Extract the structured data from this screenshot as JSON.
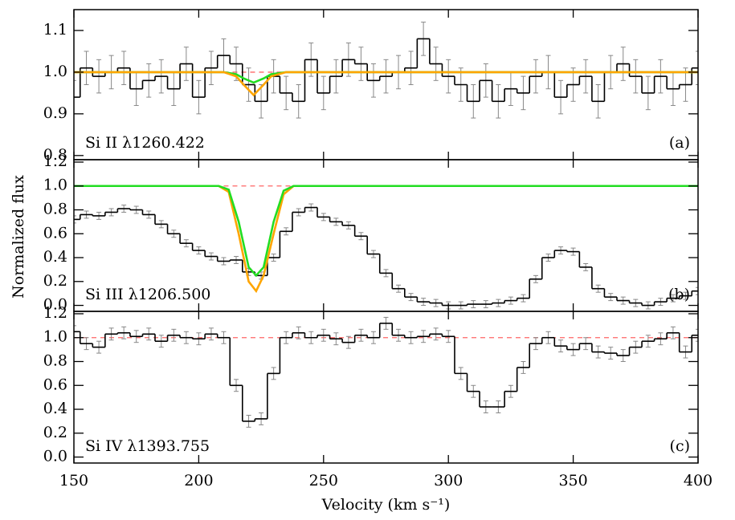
{
  "chart_data": [
    {
      "type": "step",
      "label": "Si II λ1260.422",
      "panel": "(a)",
      "xlim": [
        150,
        400
      ],
      "xticks": [
        150,
        200,
        250,
        300,
        350,
        400
      ],
      "ylim": [
        0.79,
        1.15
      ],
      "yticks": [
        0.8,
        0.9,
        {
          "value": 1.0,
          "label": "1.0"
        },
        1.1
      ],
      "x": [
        150,
        155,
        160,
        165,
        170,
        175,
        180,
        185,
        190,
        195,
        200,
        205,
        210,
        215,
        220,
        225,
        230,
        235,
        240,
        245,
        250,
        255,
        260,
        265,
        270,
        275,
        280,
        285,
        290,
        295,
        300,
        305,
        310,
        315,
        320,
        325,
        330,
        335,
        340,
        345,
        350,
        355,
        360,
        365,
        370,
        375,
        380,
        385,
        390,
        395,
        400
      ],
      "values": [
        0.94,
        1.01,
        0.99,
        1.0,
        1.01,
        0.96,
        0.98,
        0.99,
        0.96,
        1.02,
        0.94,
        1.01,
        1.04,
        1.02,
        0.97,
        0.93,
        0.99,
        0.95,
        0.93,
        1.03,
        0.95,
        0.99,
        1.03,
        1.02,
        0.98,
        0.99,
        1.0,
        1.01,
        1.08,
        1.02,
        0.99,
        0.97,
        0.93,
        0.98,
        0.93,
        0.96,
        0.95,
        0.99,
        1.0,
        0.94,
        0.97,
        0.99,
        0.93,
        1.0,
        1.02,
        0.99,
        0.95,
        0.99,
        0.96,
        0.97,
        1.01
      ],
      "errors": [
        0.04,
        0.04,
        0.04,
        0.04,
        0.04,
        0.04,
        0.04,
        0.04,
        0.04,
        0.04,
        0.04,
        0.04,
        0.04,
        0.04,
        0.04,
        0.04,
        0.04,
        0.04,
        0.04,
        0.04,
        0.04,
        0.04,
        0.04,
        0.04,
        0.04,
        0.04,
        0.04,
        0.04,
        0.04,
        0.04,
        0.04,
        0.04,
        0.04,
        0.04,
        0.04,
        0.04,
        0.04,
        0.04,
        0.04,
        0.04,
        0.04,
        0.04,
        0.04,
        0.04,
        0.04,
        0.04,
        0.04,
        0.04,
        0.04,
        0.04,
        0.04
      ],
      "color": "#000000",
      "error_color": "#888888",
      "models": [
        {
          "color": "#ff6666",
          "dashed": true,
          "x": [
            210,
            235
          ],
          "values": [
            1.0,
            1.0
          ]
        },
        {
          "color": "#22dd22",
          "x": [
            150,
            210,
            215,
            218,
            222,
            226,
            229,
            235,
            400
          ],
          "values": [
            1,
            1,
            0.995,
            0.985,
            0.975,
            0.985,
            0.995,
            1,
            1
          ]
        },
        {
          "color": "#ffa500",
          "x": [
            150,
            210,
            215,
            218,
            222,
            226,
            229,
            235,
            400
          ],
          "values": [
            1,
            1,
            0.99,
            0.97,
            0.945,
            0.97,
            0.99,
            1,
            1
          ]
        }
      ]
    },
    {
      "type": "step",
      "label": "Si III λ1206.500",
      "panel": "(b)",
      "ylabel": "Normalized flux",
      "xlim": [
        150,
        400
      ],
      "xticks": [
        150,
        200,
        250,
        300,
        350,
        400
      ],
      "ylim": [
        -0.05,
        1.22
      ],
      "yticks": [
        {
          "value": 0,
          "label": "0.0"
        },
        0.2,
        0.4,
        0.6,
        0.8,
        {
          "value": 1,
          "label": "1.0"
        },
        1.2
      ],
      "x": [
        150,
        155,
        160,
        165,
        170,
        175,
        180,
        185,
        190,
        195,
        200,
        205,
        210,
        215,
        220,
        225,
        230,
        235,
        240,
        245,
        250,
        255,
        260,
        265,
        270,
        275,
        280,
        285,
        290,
        295,
        300,
        305,
        310,
        315,
        320,
        325,
        330,
        335,
        340,
        345,
        350,
        355,
        360,
        365,
        370,
        375,
        380,
        385,
        390,
        395,
        400
      ],
      "values": [
        0.72,
        0.76,
        0.75,
        0.78,
        0.81,
        0.8,
        0.76,
        0.68,
        0.6,
        0.52,
        0.46,
        0.41,
        0.37,
        0.38,
        0.28,
        0.25,
        0.4,
        0.62,
        0.78,
        0.82,
        0.74,
        0.7,
        0.67,
        0.58,
        0.43,
        0.27,
        0.14,
        0.07,
        0.03,
        0.02,
        0.0,
        0.0,
        0.01,
        0.01,
        0.02,
        0.04,
        0.06,
        0.22,
        0.4,
        0.46,
        0.45,
        0.32,
        0.14,
        0.07,
        0.04,
        0.02,
        0.0,
        0.03,
        0.06,
        0.08,
        0.12
      ],
      "errors": [
        0.03,
        0.03,
        0.03,
        0.03,
        0.03,
        0.03,
        0.03,
        0.03,
        0.03,
        0.03,
        0.03,
        0.03,
        0.03,
        0.03,
        0.03,
        0.03,
        0.03,
        0.03,
        0.03,
        0.03,
        0.03,
        0.03,
        0.03,
        0.03,
        0.03,
        0.03,
        0.03,
        0.03,
        0.03,
        0.03,
        0.03,
        0.03,
        0.03,
        0.03,
        0.03,
        0.03,
        0.03,
        0.03,
        0.03,
        0.03,
        0.03,
        0.03,
        0.03,
        0.03,
        0.03,
        0.03,
        0.03,
        0.03,
        0.03,
        0.03,
        0.03
      ],
      "color": "#000000",
      "error_color": "#888888",
      "models": [
        {
          "color": "#ff6666",
          "dashed": true,
          "x": [
            210,
            238
          ],
          "values": [
            1.0,
            1.0
          ]
        },
        {
          "color": "#ffa500",
          "x": [
            150,
            208,
            212,
            216,
            220,
            223,
            226,
            230,
            234,
            238,
            400
          ],
          "values": [
            1,
            1,
            0.95,
            0.6,
            0.2,
            0.12,
            0.25,
            0.6,
            0.93,
            1,
            1
          ]
        },
        {
          "color": "#22dd22",
          "x": [
            150,
            208,
            212,
            216,
            220,
            223,
            226,
            230,
            234,
            238,
            400
          ],
          "values": [
            1,
            1,
            0.97,
            0.7,
            0.32,
            0.25,
            0.32,
            0.7,
            0.96,
            1,
            1
          ]
        }
      ]
    },
    {
      "type": "step",
      "label": "Si IV λ1393.755",
      "panel": "(c)",
      "xlabel": "Velocity (km s⁻¹)",
      "xlim": [
        150,
        400
      ],
      "xticks": [
        150,
        200,
        250,
        300,
        350,
        400
      ],
      "ylim": [
        -0.05,
        1.22
      ],
      "yticks": [
        {
          "value": 0,
          "label": "0.0"
        },
        0.2,
        0.4,
        0.6,
        0.8,
        {
          "value": 1,
          "label": "1.0"
        },
        1.2
      ],
      "x": [
        150,
        155,
        160,
        165,
        170,
        175,
        180,
        185,
        190,
        195,
        200,
        205,
        210,
        215,
        220,
        225,
        230,
        235,
        240,
        245,
        250,
        255,
        260,
        265,
        270,
        275,
        280,
        285,
        290,
        295,
        300,
        305,
        310,
        315,
        320,
        325,
        330,
        335,
        340,
        345,
        350,
        355,
        360,
        365,
        370,
        375,
        380,
        385,
        390,
        395,
        400
      ],
      "values": [
        1.05,
        0.95,
        0.92,
        1.03,
        1.04,
        1.01,
        1.03,
        0.97,
        1.02,
        1.0,
        0.99,
        1.03,
        1.0,
        0.6,
        0.3,
        0.32,
        0.7,
        1.0,
        1.04,
        1.0,
        1.02,
        0.99,
        0.96,
        1.02,
        1.0,
        1.12,
        1.02,
        1.0,
        1.01,
        1.03,
        1.01,
        0.7,
        0.55,
        0.42,
        0.42,
        0.55,
        0.75,
        0.95,
        1.0,
        0.93,
        0.9,
        0.95,
        0.88,
        0.87,
        0.85,
        0.92,
        0.97,
        0.99,
        1.04,
        0.88,
        1.02
      ],
      "errors": [
        0.05,
        0.05,
        0.05,
        0.05,
        0.05,
        0.05,
        0.05,
        0.05,
        0.05,
        0.05,
        0.05,
        0.05,
        0.05,
        0.05,
        0.05,
        0.05,
        0.05,
        0.05,
        0.05,
        0.05,
        0.05,
        0.05,
        0.05,
        0.05,
        0.05,
        0.05,
        0.05,
        0.05,
        0.05,
        0.05,
        0.05,
        0.05,
        0.05,
        0.05,
        0.05,
        0.05,
        0.05,
        0.05,
        0.05,
        0.05,
        0.05,
        0.05,
        0.05,
        0.05,
        0.05,
        0.05,
        0.05,
        0.05,
        0.05,
        0.05,
        0.05
      ],
      "color": "#000000",
      "error_color": "#888888",
      "models": [
        {
          "color": "#ff6666",
          "dashed": true,
          "x": [
            150,
            400
          ],
          "values": [
            1.0,
            1.0
          ]
        }
      ]
    }
  ]
}
